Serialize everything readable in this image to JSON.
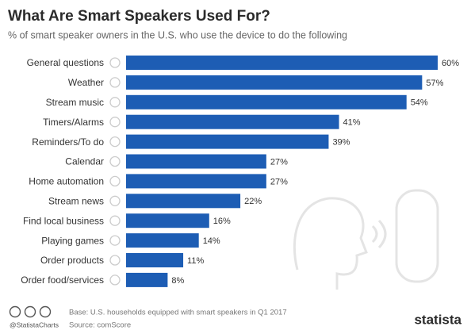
{
  "chart_data": {
    "type": "bar",
    "orientation": "horizontal",
    "title": "What Are Smart Speakers Used For?",
    "subtitle": "% of smart speaker owners in the U.S. who use the device to do the following",
    "categories": [
      "General questions",
      "Weather",
      "Stream music",
      "Timers/Alarms",
      "Reminders/To do",
      "Calendar",
      "Home automation",
      "Stream news",
      "Find local business",
      "Playing games",
      "Order products",
      "Order food/services"
    ],
    "values": [
      60,
      57,
      54,
      41,
      39,
      27,
      27,
      22,
      16,
      14,
      11,
      8
    ],
    "value_labels": [
      "60%",
      "57%",
      "54%",
      "41%",
      "39%",
      "27%",
      "27%",
      "22%",
      "16%",
      "14%",
      "11%",
      "8%"
    ],
    "color": "#1d5db4",
    "xlim": [
      0,
      60
    ],
    "footer": {
      "credit": "@StatistaCharts",
      "base": "Base: U.S. households equipped with smart speakers in Q1 2017",
      "source": "Source: comScore",
      "logo": "statista"
    }
  }
}
